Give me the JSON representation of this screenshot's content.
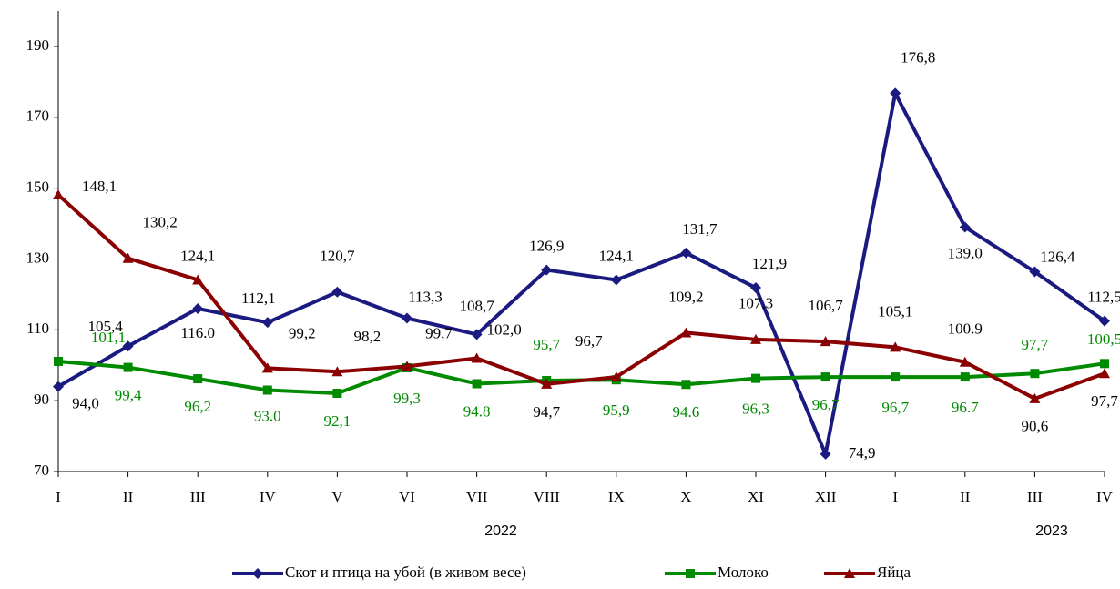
{
  "chart_data": {
    "type": "line",
    "categories": [
      "I",
      "II",
      "III",
      "IV",
      "V",
      "VI",
      "VII",
      "VIII",
      "IX",
      "X",
      "XI",
      "XII",
      "I",
      "II",
      "III",
      "IV"
    ],
    "group_labels": [
      "2022",
      "2023"
    ],
    "ylim": [
      70,
      190
    ],
    "yticks": [
      70,
      90,
      110,
      130,
      150,
      170,
      190
    ],
    "series": [
      {
        "name": "Скот и птица на убой (в живом весе)",
        "color": "#1a1a80",
        "marker": "diamond",
        "values": [
          94.0,
          105.4,
          116.0,
          112.1,
          120.7,
          113.3,
          108.7,
          126.9,
          124.1,
          131.7,
          121.9,
          74.9,
          176.8,
          139.0,
          126.4,
          112.5
        ],
        "value_labels": [
          "94,0",
          "105,4",
          "116.0",
          "112,1",
          "120,7",
          "113,3",
          "108,7",
          "126,9",
          "124,1",
          "131,7",
          "121,9",
          "74,9",
          "176,8",
          "139,0",
          "126,4",
          "112,5"
        ]
      },
      {
        "name": "Молоко",
        "color": "#008a00",
        "marker": "square",
        "values": [
          101.1,
          99.4,
          96.2,
          93.0,
          92.1,
          99.3,
          94.8,
          95.7,
          95.9,
          94.6,
          96.3,
          96.7,
          96.7,
          96.7,
          97.7,
          100.5
        ],
        "value_labels": [
          "101,1",
          "99,4",
          "96,2",
          "93.0",
          "92,1",
          "99,3",
          "94.8",
          "95,7",
          "95,9",
          "94.6",
          "96,3",
          "96,7",
          "96,7",
          "96.7",
          "97,7",
          "100,5"
        ]
      },
      {
        "name": "Яйца",
        "color": "#8b0000",
        "marker": "triangle",
        "values": [
          148.1,
          130.2,
          124.1,
          99.2,
          98.2,
          99.7,
          102.0,
          94.7,
          96.7,
          109.2,
          107.3,
          106.7,
          105.1,
          100.9,
          90.6,
          97.7
        ],
        "value_labels": [
          "148,1",
          "130,2",
          "124,1",
          "99,2",
          "98,2",
          "99,7",
          "102,0",
          "94,7",
          "96,7",
          "109,2",
          "107,3",
          "106,7",
          "105,1",
          "100.9",
          "90,6",
          "97,7"
        ]
      }
    ]
  }
}
